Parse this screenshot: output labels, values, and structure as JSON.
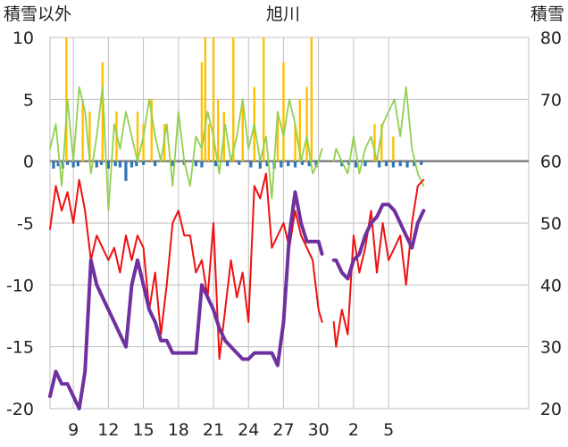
{
  "chart_data": {
    "type": "line",
    "title": "旭川",
    "ylabel_left": "積雪以外",
    "ylabel_right": "積雪",
    "ylim_left": [
      -20,
      10
    ],
    "ylim_right": [
      20,
      80
    ],
    "yticks_left": [
      "10",
      "5",
      "0",
      "-5",
      "-10",
      "-15",
      "-20"
    ],
    "yticks_right": [
      "80",
      "70",
      "60",
      "50",
      "40",
      "30",
      "20"
    ],
    "x_range": [
      0,
      41
    ],
    "xticks": [
      {
        "x": 2,
        "label": "9"
      },
      {
        "x": 5,
        "label": "12"
      },
      {
        "x": 8,
        "label": "15"
      },
      {
        "x": 11,
        "label": "18"
      },
      {
        "x": 14,
        "label": "21"
      },
      {
        "x": 17,
        "label": "24"
      },
      {
        "x": 20,
        "label": "27"
      },
      {
        "x": 23,
        "label": "30"
      },
      {
        "x": 26,
        "label": "2"
      },
      {
        "x": 29,
        "label": "5"
      }
    ],
    "gaps": [
      [
        23.3,
        24.3
      ]
    ],
    "grid": true,
    "colors": {
      "temperature_red": "#ee1111",
      "snow_depth_purple": "#7030a0",
      "green_line": "#92d050",
      "precip_orange": "#ffc000",
      "negative_bars": "#2e75b6",
      "grid": "#bfbfbf",
      "zero_line": "#808080"
    },
    "series": [
      {
        "key": "red",
        "axis": "left",
        "points": [
          [
            0.0,
            -5.5
          ],
          [
            0.5,
            -2
          ],
          [
            1.0,
            -4
          ],
          [
            1.5,
            -2.5
          ],
          [
            2.0,
            -5
          ],
          [
            2.5,
            -1.5
          ],
          [
            3.0,
            -4
          ],
          [
            3.5,
            -8
          ],
          [
            4.0,
            -6
          ],
          [
            4.5,
            -7
          ],
          [
            5.0,
            -8
          ],
          [
            5.5,
            -7
          ],
          [
            6.0,
            -9
          ],
          [
            6.5,
            -6
          ],
          [
            7.0,
            -8
          ],
          [
            7.5,
            -6
          ],
          [
            8.0,
            -7
          ],
          [
            8.5,
            -12
          ],
          [
            9.0,
            -9
          ],
          [
            9.5,
            -14
          ],
          [
            10.0,
            -10
          ],
          [
            10.5,
            -5
          ],
          [
            11.0,
            -4
          ],
          [
            11.5,
            -6
          ],
          [
            12.0,
            -6
          ],
          [
            12.5,
            -9
          ],
          [
            13.0,
            -8
          ],
          [
            13.5,
            -11
          ],
          [
            14.0,
            -5
          ],
          [
            14.5,
            -16
          ],
          [
            15.0,
            -12
          ],
          [
            15.5,
            -8
          ],
          [
            16.0,
            -11
          ],
          [
            16.5,
            -9
          ],
          [
            17.0,
            -13
          ],
          [
            17.5,
            -2
          ],
          [
            18.0,
            -3
          ],
          [
            18.5,
            -1
          ],
          [
            19.0,
            -7
          ],
          [
            19.5,
            -6
          ],
          [
            20.0,
            -5
          ],
          [
            20.5,
            -7
          ],
          [
            21.0,
            -4
          ],
          [
            21.5,
            -6
          ],
          [
            22.0,
            -7
          ],
          [
            22.5,
            -8
          ],
          [
            23.0,
            -12
          ],
          [
            23.3,
            -13
          ],
          [
            24.3,
            -13
          ],
          [
            24.5,
            -15
          ],
          [
            25.0,
            -12
          ],
          [
            25.5,
            -14
          ],
          [
            26.0,
            -6
          ],
          [
            26.5,
            -9
          ],
          [
            27.0,
            -7
          ],
          [
            27.5,
            -4
          ],
          [
            28.0,
            -9
          ],
          [
            28.5,
            -5
          ],
          [
            29.0,
            -8
          ],
          [
            29.5,
            -7
          ],
          [
            30.0,
            -6
          ],
          [
            30.5,
            -10
          ],
          [
            31.0,
            -5
          ],
          [
            31.5,
            -2
          ],
          [
            32.0,
            -1.5
          ]
        ]
      },
      {
        "key": "purple",
        "axis": "right",
        "points": [
          [
            0.0,
            22
          ],
          [
            0.5,
            26
          ],
          [
            1.0,
            24
          ],
          [
            1.5,
            24
          ],
          [
            2.0,
            22
          ],
          [
            2.5,
            20
          ],
          [
            3.0,
            26
          ],
          [
            3.5,
            44
          ],
          [
            4.0,
            40
          ],
          [
            4.5,
            38
          ],
          [
            5.0,
            36
          ],
          [
            5.5,
            34
          ],
          [
            6.0,
            32
          ],
          [
            6.5,
            30
          ],
          [
            7.0,
            40
          ],
          [
            7.5,
            44
          ],
          [
            8.0,
            40
          ],
          [
            8.5,
            36
          ],
          [
            9.0,
            34
          ],
          [
            9.5,
            31
          ],
          [
            10.0,
            31
          ],
          [
            10.5,
            29
          ],
          [
            11.0,
            29
          ],
          [
            11.5,
            29
          ],
          [
            12.0,
            29
          ],
          [
            12.5,
            29
          ],
          [
            13.0,
            40
          ],
          [
            13.5,
            38
          ],
          [
            14.0,
            36
          ],
          [
            14.5,
            33
          ],
          [
            15.0,
            31
          ],
          [
            15.5,
            30
          ],
          [
            16.0,
            29
          ],
          [
            16.5,
            28
          ],
          [
            17.0,
            28
          ],
          [
            17.5,
            29
          ],
          [
            18.0,
            29
          ],
          [
            18.5,
            29
          ],
          [
            19.0,
            29
          ],
          [
            19.5,
            27
          ],
          [
            20.0,
            34
          ],
          [
            20.5,
            48
          ],
          [
            21.0,
            55
          ],
          [
            21.5,
            50
          ],
          [
            22.0,
            47
          ],
          [
            22.5,
            47
          ],
          [
            23.0,
            47
          ],
          [
            23.3,
            45
          ],
          [
            24.3,
            44
          ],
          [
            24.5,
            44
          ],
          [
            25.0,
            42
          ],
          [
            25.5,
            41
          ],
          [
            26.0,
            44
          ],
          [
            26.5,
            45
          ],
          [
            27.0,
            48
          ],
          [
            27.5,
            50
          ],
          [
            28.0,
            51
          ],
          [
            28.5,
            53
          ],
          [
            29.0,
            53
          ],
          [
            29.5,
            52
          ],
          [
            30.0,
            50
          ],
          [
            30.5,
            48
          ],
          [
            31.0,
            46
          ],
          [
            31.5,
            50
          ],
          [
            32.0,
            52
          ]
        ]
      },
      {
        "key": "green",
        "axis": "left",
        "points": [
          [
            0.0,
            1
          ],
          [
            0.5,
            3
          ],
          [
            1.0,
            -2
          ],
          [
            1.5,
            5
          ],
          [
            2.0,
            0
          ],
          [
            2.5,
            6
          ],
          [
            3.0,
            4
          ],
          [
            3.5,
            -1
          ],
          [
            4.0,
            2
          ],
          [
            4.5,
            6
          ],
          [
            5.0,
            -4
          ],
          [
            5.5,
            3
          ],
          [
            6.0,
            1
          ],
          [
            6.5,
            4
          ],
          [
            7.0,
            2
          ],
          [
            7.5,
            0
          ],
          [
            8.0,
            2
          ],
          [
            8.5,
            5
          ],
          [
            9.0,
            2
          ],
          [
            9.5,
            0
          ],
          [
            10.0,
            3
          ],
          [
            10.5,
            -2
          ],
          [
            11.0,
            4
          ],
          [
            11.5,
            0
          ],
          [
            12.0,
            -2
          ],
          [
            12.5,
            2
          ],
          [
            13.0,
            1
          ],
          [
            13.5,
            4
          ],
          [
            14.0,
            2
          ],
          [
            14.5,
            -1
          ],
          [
            15.0,
            3
          ],
          [
            15.5,
            0
          ],
          [
            16.0,
            2
          ],
          [
            16.5,
            5
          ],
          [
            17.0,
            1
          ],
          [
            17.5,
            3
          ],
          [
            18.0,
            0
          ],
          [
            18.5,
            2
          ],
          [
            19.0,
            -3
          ],
          [
            19.5,
            4
          ],
          [
            20.0,
            2
          ],
          [
            20.5,
            5
          ],
          [
            21.0,
            3
          ],
          [
            21.5,
            0
          ],
          [
            22.0,
            2
          ],
          [
            22.5,
            -1
          ],
          [
            23.0,
            0
          ],
          [
            23.3,
            1
          ],
          [
            24.3,
            0
          ],
          [
            24.5,
            1
          ],
          [
            25.0,
            0
          ],
          [
            25.5,
            -1
          ],
          [
            26.0,
            2
          ],
          [
            26.5,
            -1
          ],
          [
            27.0,
            1
          ],
          [
            27.5,
            2
          ],
          [
            28.0,
            0
          ],
          [
            28.5,
            3
          ],
          [
            29.0,
            4
          ],
          [
            29.5,
            5
          ],
          [
            30.0,
            2
          ],
          [
            30.5,
            6
          ],
          [
            31.0,
            1
          ],
          [
            31.5,
            -1
          ],
          [
            32.0,
            -2
          ]
        ]
      }
    ],
    "orange_bars": [
      [
        1.4,
        10
      ],
      [
        2.8,
        5
      ],
      [
        3.4,
        4
      ],
      [
        4.5,
        8
      ],
      [
        5.7,
        4
      ],
      [
        7.5,
        4
      ],
      [
        8.0,
        3
      ],
      [
        8.7,
        5
      ],
      [
        9.8,
        3
      ],
      [
        13.0,
        8
      ],
      [
        13.3,
        10
      ],
      [
        13.6,
        3
      ],
      [
        14.0,
        10
      ],
      [
        14.4,
        5
      ],
      [
        14.9,
        4
      ],
      [
        15.7,
        10
      ],
      [
        16.5,
        5
      ],
      [
        17.5,
        6
      ],
      [
        18.3,
        10
      ],
      [
        19.5,
        4
      ],
      [
        20.0,
        8
      ],
      [
        21.0,
        3
      ],
      [
        21.4,
        5
      ],
      [
        22.0,
        6
      ],
      [
        22.4,
        10
      ],
      [
        27.8,
        3
      ],
      [
        28.4,
        3
      ],
      [
        29.4,
        2
      ]
    ],
    "blue_bars": [
      [
        0.3,
        -0.6
      ],
      [
        0.7,
        -0.4
      ],
      [
        1.1,
        -0.6
      ],
      [
        1.5,
        -0.3
      ],
      [
        2.0,
        -0.5
      ],
      [
        2.4,
        -0.4
      ],
      [
        4.0,
        -0.5
      ],
      [
        4.4,
        -0.3
      ],
      [
        5.0,
        -0.6
      ],
      [
        5.6,
        -0.4
      ],
      [
        6.0,
        -0.5
      ],
      [
        6.5,
        -1.6
      ],
      [
        7.0,
        -0.5
      ],
      [
        7.4,
        -0.4
      ],
      [
        8.0,
        -0.3
      ],
      [
        9.0,
        -0.4
      ],
      [
        10.5,
        -0.4
      ],
      [
        11.5,
        -0.3
      ],
      [
        12.5,
        -0.4
      ],
      [
        13.0,
        -0.5
      ],
      [
        14.2,
        -0.4
      ],
      [
        15.2,
        -0.4
      ],
      [
        16.2,
        -0.3
      ],
      [
        17.2,
        -0.5
      ],
      [
        18.0,
        -0.6
      ],
      [
        18.6,
        -0.4
      ],
      [
        19.2,
        -0.6
      ],
      [
        19.8,
        -0.5
      ],
      [
        20.4,
        -0.4
      ],
      [
        21.0,
        -0.5
      ],
      [
        21.6,
        -0.3
      ],
      [
        22.2,
        -0.4
      ],
      [
        22.8,
        -0.5
      ],
      [
        25.0,
        -0.4
      ],
      [
        25.6,
        -0.3
      ],
      [
        26.2,
        -0.5
      ],
      [
        27.0,
        -0.4
      ],
      [
        28.2,
        -0.5
      ],
      [
        28.8,
        -0.4
      ],
      [
        29.4,
        -0.5
      ],
      [
        30.0,
        -0.4
      ],
      [
        30.6,
        -0.5
      ],
      [
        31.2,
        -0.4
      ],
      [
        31.8,
        -0.3
      ]
    ]
  }
}
